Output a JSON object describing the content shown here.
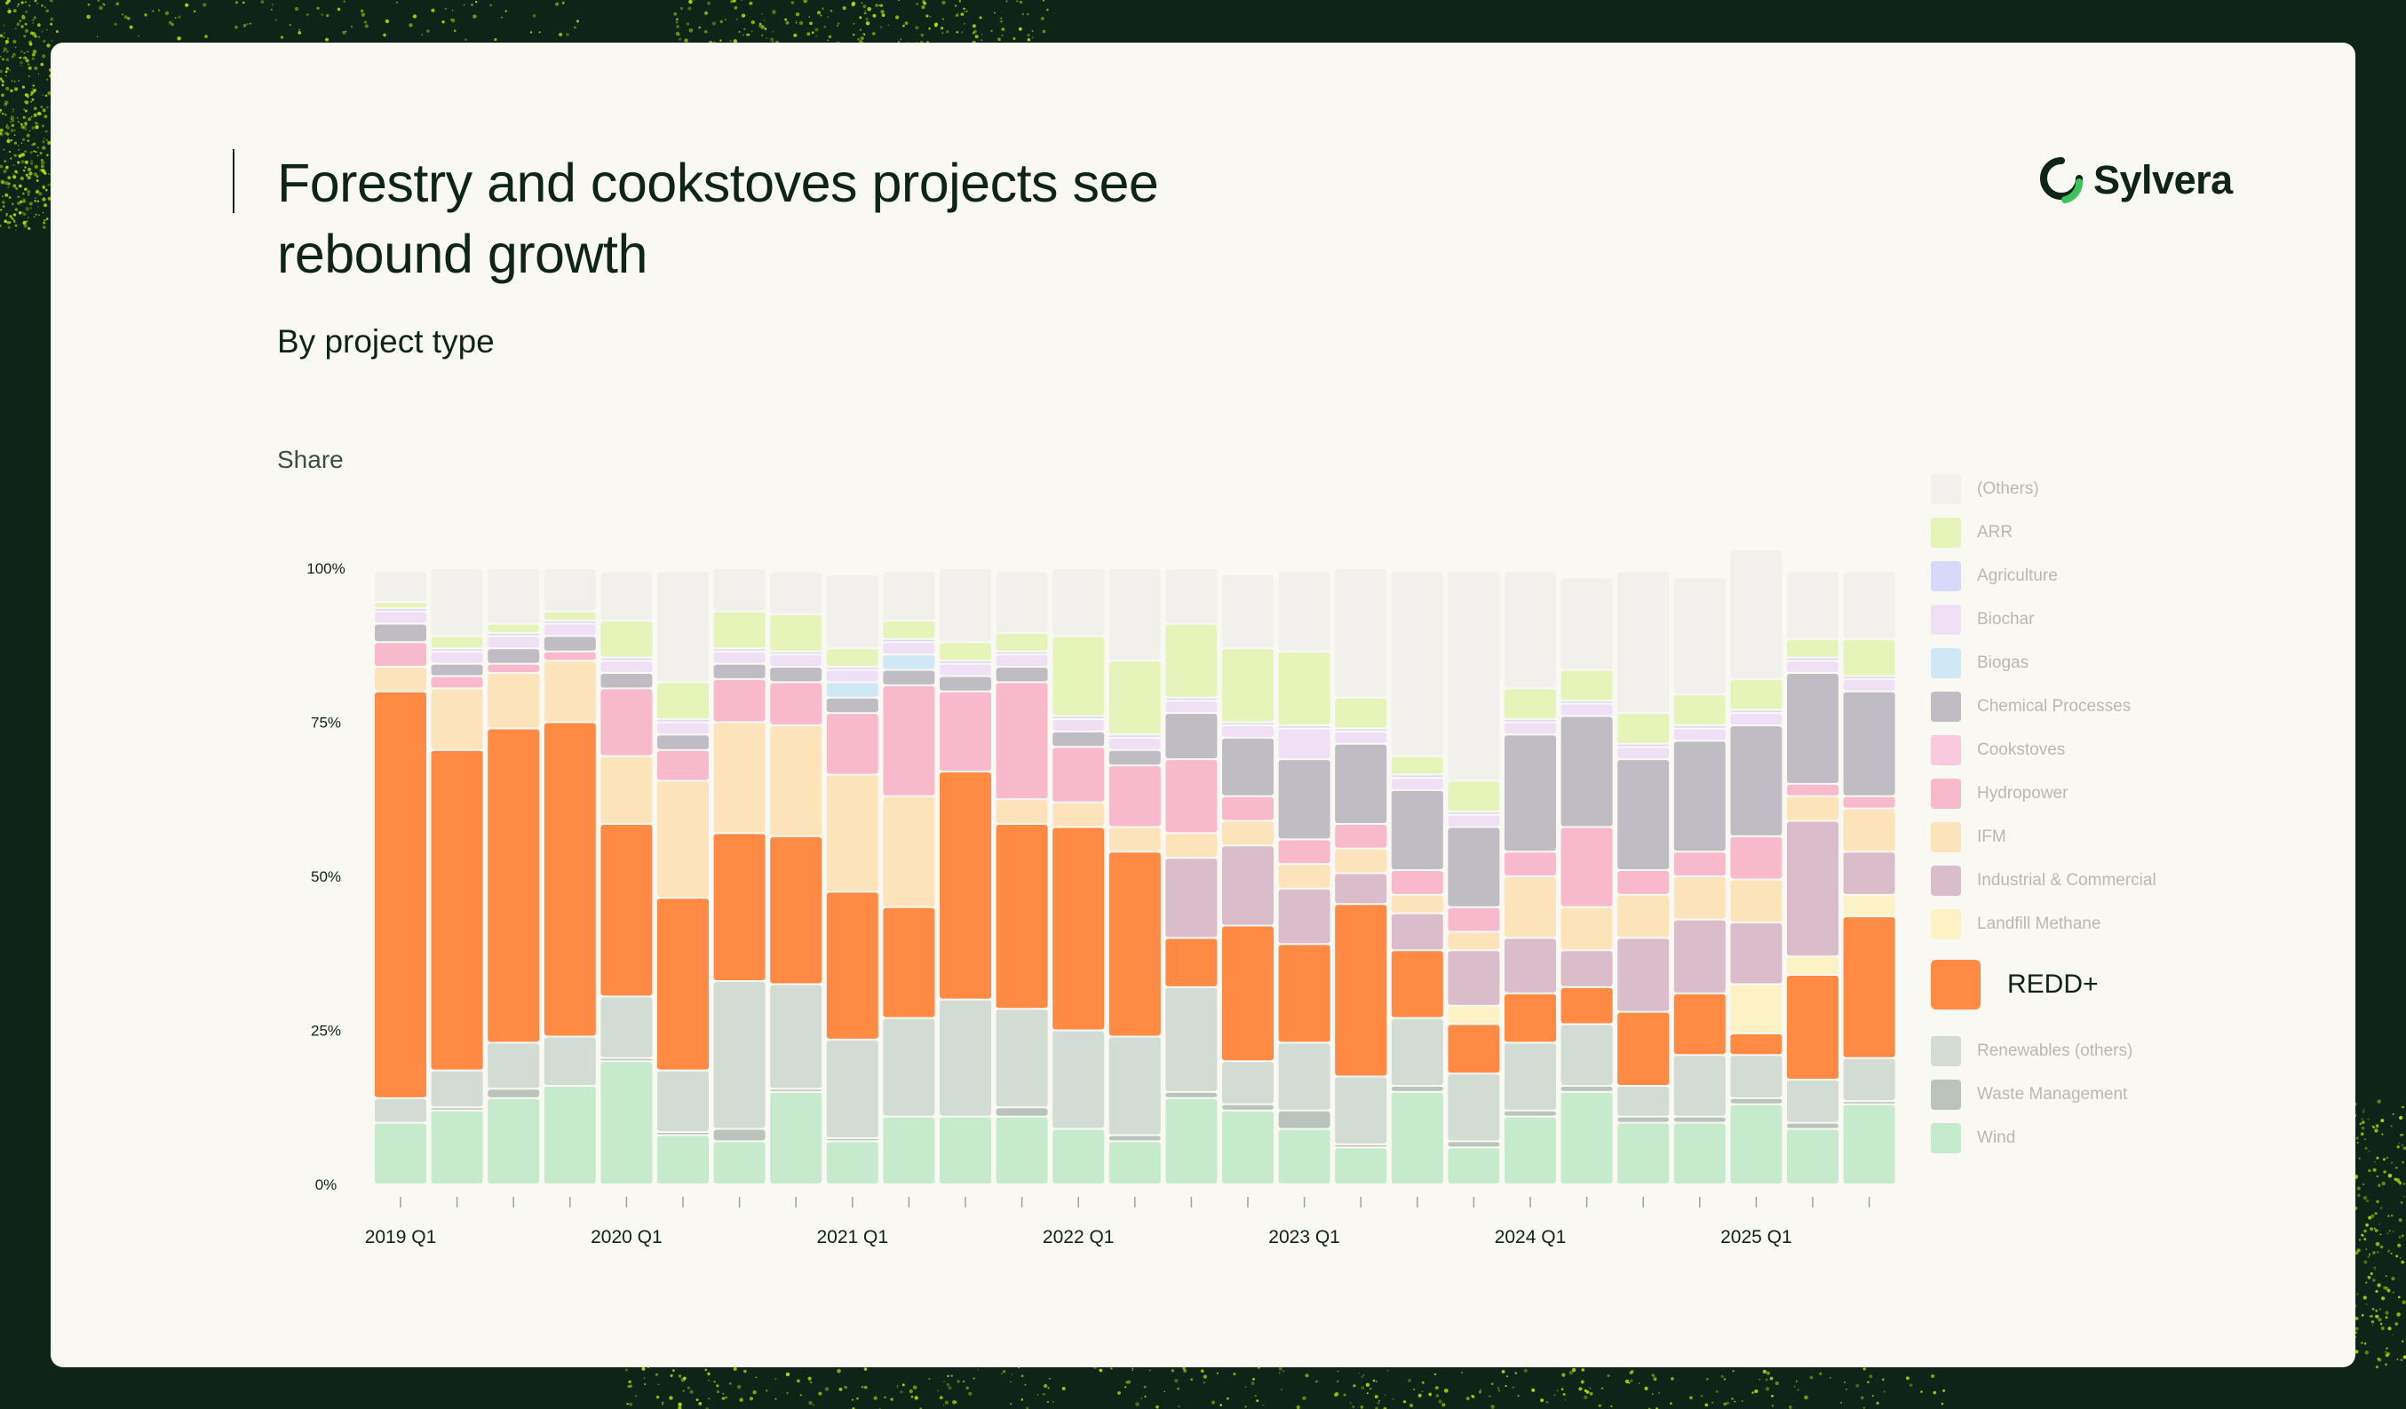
{
  "header": {
    "title": "Forestry and cookstoves projects see rebound growth",
    "subtitle": "By project type",
    "y_axis_caption": "Share"
  },
  "brand": {
    "name": "Sylvera"
  },
  "colors": {
    "background": "#0e2418",
    "card": "#faf8f3",
    "speck": "#b6e000",
    "logo_green": "#3ac45a"
  },
  "chart_data": {
    "type": "bar",
    "stacked": true,
    "title": "Forestry and cookstoves projects see rebound growth",
    "subtitle": "By project type",
    "ylabel": "Share",
    "ylim": [
      0,
      100
    ],
    "yticks": [
      "0%",
      "25%",
      "50%",
      "75%",
      "100%"
    ],
    "ytick_values": [
      0,
      25,
      50,
      75,
      100
    ],
    "categories": [
      "2019 Q1",
      "2019 Q2",
      "2019 Q3",
      "2019 Q4",
      "2020 Q1",
      "2020 Q2",
      "2020 Q3",
      "2020 Q4",
      "2021 Q1",
      "2021 Q2",
      "2021 Q3",
      "2021 Q4",
      "2022 Q1",
      "2022 Q2",
      "2022 Q3",
      "2022 Q4",
      "2023 Q1",
      "2023 Q2",
      "2023 Q3",
      "2023 Q4",
      "2024 Q1",
      "2024 Q2",
      "2024 Q3",
      "2024 Q4",
      "2025 Q1",
      "2025 Q2",
      "2025 Q3"
    ],
    "xtick_labels": [
      "2019 Q1",
      "",
      "",
      "",
      "2020 Q1",
      "",
      "",
      "",
      "2021 Q1",
      "",
      "",
      "",
      "2022 Q1",
      "",
      "",
      "",
      "2023 Q1",
      "",
      "",
      "",
      "2024 Q1",
      "",
      "",
      "",
      "2025 Q1",
      "",
      ""
    ],
    "highlight_series": "REDD+",
    "series": [
      {
        "name": "Wind",
        "color": "#c6eacc",
        "values": [
          10,
          12,
          14,
          16,
          20,
          8,
          7,
          15,
          7,
          11,
          11,
          11,
          9,
          7,
          14,
          12,
          9,
          6,
          15,
          6,
          11,
          15,
          10,
          10,
          13,
          9,
          13
        ]
      },
      {
        "name": "Waste Management",
        "color": "#bac4bc",
        "values": [
          0,
          0.5,
          1.5,
          0,
          0.5,
          0.5,
          2,
          0.5,
          0.5,
          0,
          0,
          1.5,
          0,
          1,
          1,
          1,
          3,
          0.5,
          1,
          1,
          1,
          1,
          1,
          1,
          1,
          1,
          0.5
        ]
      },
      {
        "name": "Renewables (others)",
        "color": "#d3dbd5",
        "values": [
          4,
          6,
          7.5,
          8,
          10,
          10,
          24,
          17,
          16,
          16,
          19,
          16,
          16,
          16,
          17,
          7,
          11,
          11,
          11,
          11,
          11,
          10,
          5,
          10,
          7,
          7,
          7
        ]
      },
      {
        "name": "REDD+",
        "color": "#ff8a44",
        "values": [
          66,
          52,
          51,
          51,
          28,
          28,
          24,
          24,
          24,
          18,
          37,
          30,
          33,
          30,
          8,
          22,
          16,
          28,
          11,
          8,
          8,
          6,
          12,
          10,
          3.5,
          17,
          23
        ]
      },
      {
        "name": "Landfill Methane",
        "color": "#fcf2c5",
        "values": [
          0,
          0,
          0,
          0,
          0,
          0,
          0,
          0,
          0,
          0,
          0,
          0,
          0,
          0,
          0,
          0,
          0,
          0,
          0,
          3,
          0,
          0,
          0,
          0,
          8,
          3,
          3.5
        ]
      },
      {
        "name": "Industrial & Commercial",
        "color": "#dbbcca",
        "values": [
          0,
          0,
          0,
          0,
          0,
          0,
          0,
          0,
          0,
          0,
          0,
          0,
          0,
          0,
          13,
          13,
          9,
          5,
          6,
          9,
          9,
          6,
          12,
          12,
          10,
          22,
          7
        ]
      },
      {
        "name": "IFM",
        "color": "#fde3ba",
        "values": [
          4,
          10,
          9,
          10,
          11,
          19,
          18,
          18,
          19,
          18,
          0,
          4,
          4,
          4,
          4,
          4,
          4,
          4,
          3,
          3,
          10,
          7,
          7,
          7,
          7,
          4,
          7
        ]
      },
      {
        "name": "Hydropower",
        "color": "#f8b9cd",
        "values": [
          4,
          2,
          1.5,
          1.5,
          11,
          5,
          7,
          7,
          10,
          18,
          13,
          19,
          9,
          10,
          12,
          4,
          4,
          4,
          4,
          4,
          4,
          13,
          4,
          4,
          7,
          2,
          2
        ]
      },
      {
        "name": "Cookstoves",
        "color": "#f9c9de",
        "values": [
          0,
          0,
          0,
          0,
          0,
          0,
          0,
          0,
          0,
          0,
          0,
          0,
          0,
          0,
          0,
          0,
          0,
          0,
          0,
          0,
          0,
          0,
          0,
          0,
          0,
          0,
          0
        ]
      },
      {
        "name": "Chemical Processes",
        "color": "#bfbcc4",
        "values": [
          3,
          2,
          2.5,
          2.5,
          2.5,
          2.5,
          2.5,
          2.5,
          2.5,
          2.5,
          2.5,
          2.5,
          2.5,
          2.5,
          7.5,
          9.5,
          13,
          13,
          13,
          13,
          19,
          18,
          18,
          18,
          18,
          18,
          17
        ]
      },
      {
        "name": "Biogas",
        "color": "#cfe8f6",
        "values": [
          0,
          0,
          0,
          0,
          0,
          0,
          0,
          0,
          2.5,
          2.5,
          0,
          0,
          0,
          0,
          0,
          0,
          0,
          0,
          0,
          0,
          0,
          0,
          0,
          0,
          0,
          0,
          0
        ]
      },
      {
        "name": "Biochar",
        "color": "#efe0f6",
        "values": [
          2,
          2,
          2,
          2,
          2,
          2,
          2,
          2,
          2,
          2,
          2,
          2,
          2,
          2,
          2,
          2,
          5,
          2,
          2,
          2,
          2,
          2,
          2,
          2,
          2,
          2,
          2
        ]
      },
      {
        "name": "Agriculture",
        "color": "#d8d8fb",
        "values": [
          0.5,
          0.5,
          0.5,
          0.5,
          0.5,
          0.5,
          0.5,
          0.5,
          0.5,
          0.5,
          0.5,
          0.5,
          0.5,
          0.5,
          0.5,
          0.5,
          0.5,
          0.5,
          0.5,
          0.5,
          0.5,
          0.5,
          0.5,
          0.5,
          0.5,
          0.5,
          0.5
        ]
      },
      {
        "name": "ARR",
        "color": "#e6f3b9",
        "values": [
          1,
          2,
          1.5,
          1.5,
          6,
          6,
          6,
          6,
          3,
          3,
          3,
          3,
          13,
          12,
          12,
          12,
          12,
          5,
          3,
          5,
          5,
          5,
          5,
          5,
          5,
          3,
          6
        ]
      },
      {
        "name": "(Others)",
        "color": "#f1f0ec",
        "values": [
          5,
          11,
          9,
          7,
          8,
          18,
          7,
          7,
          12,
          8,
          12,
          10,
          11,
          15,
          9,
          12,
          13,
          21,
          30,
          34,
          19,
          15,
          23,
          19,
          21,
          11,
          11
        ]
      }
    ],
    "legend": [
      {
        "label": "(Others)",
        "color": "#f1f0ec"
      },
      {
        "label": "ARR",
        "color": "#e6f3b9"
      },
      {
        "label": "Agriculture",
        "color": "#d8d8fb"
      },
      {
        "label": "Biochar",
        "color": "#efe0f6"
      },
      {
        "label": "Biogas",
        "color": "#cfe8f6"
      },
      {
        "label": "Chemical Processes",
        "color": "#bfbcc4"
      },
      {
        "label": "Cookstoves",
        "color": "#f9c9de"
      },
      {
        "label": "Hydropower",
        "color": "#f8b9cd"
      },
      {
        "label": "IFM",
        "color": "#fde3ba"
      },
      {
        "label": "Industrial & Commercial",
        "color": "#dbbcca"
      },
      {
        "label": "Landfill Methane",
        "color": "#fcf2c5"
      },
      {
        "label": "REDD+",
        "color": "#ff8a44",
        "highlight": true
      },
      {
        "label": "Renewables (others)",
        "color": "#d3dbd5"
      },
      {
        "label": "Waste Management",
        "color": "#bac4bc"
      },
      {
        "label": "Wind",
        "color": "#c6eacc"
      }
    ],
    "legend_position": "right"
  }
}
